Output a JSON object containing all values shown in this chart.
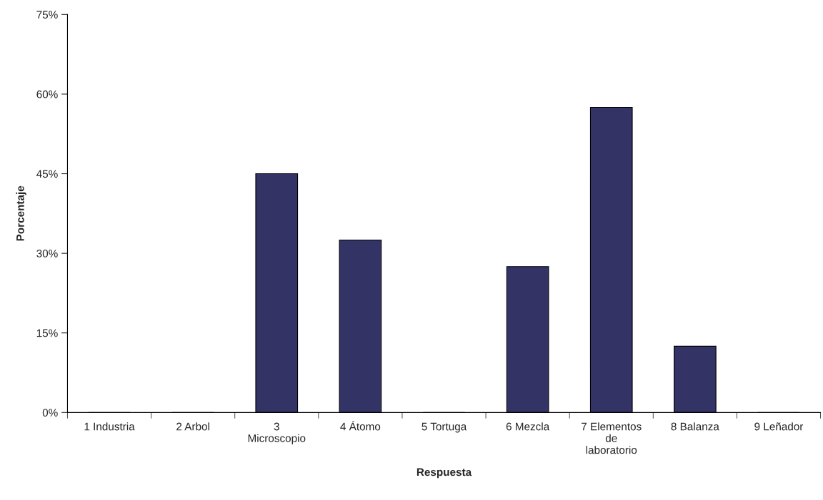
{
  "chart_data": {
    "type": "bar",
    "xlabel": "Respuesta",
    "ylabel": "Porcentaje",
    "categories": [
      "1 Industria",
      "2 Arbol",
      "3\nMicroscopio",
      "4 Átomo",
      "5 Tortuga",
      "6 Mezcla",
      "7 Elementos\nde\nlaboratorio",
      "8 Balanza",
      "9 Leñador"
    ],
    "values": [
      0,
      0,
      45,
      32.5,
      0,
      27.5,
      57.5,
      12.5,
      0
    ],
    "color": "#333366",
    "ylim": [
      0,
      75
    ],
    "yticks": [
      {
        "value": 0,
        "label": "0%"
      },
      {
        "value": 15,
        "label": "15%"
      },
      {
        "value": 30,
        "label": "30%"
      },
      {
        "value": 45,
        "label": "45%"
      },
      {
        "value": 60,
        "label": "60%"
      },
      {
        "value": 75,
        "label": "75%"
      }
    ],
    "grid": false,
    "legend": false
  }
}
